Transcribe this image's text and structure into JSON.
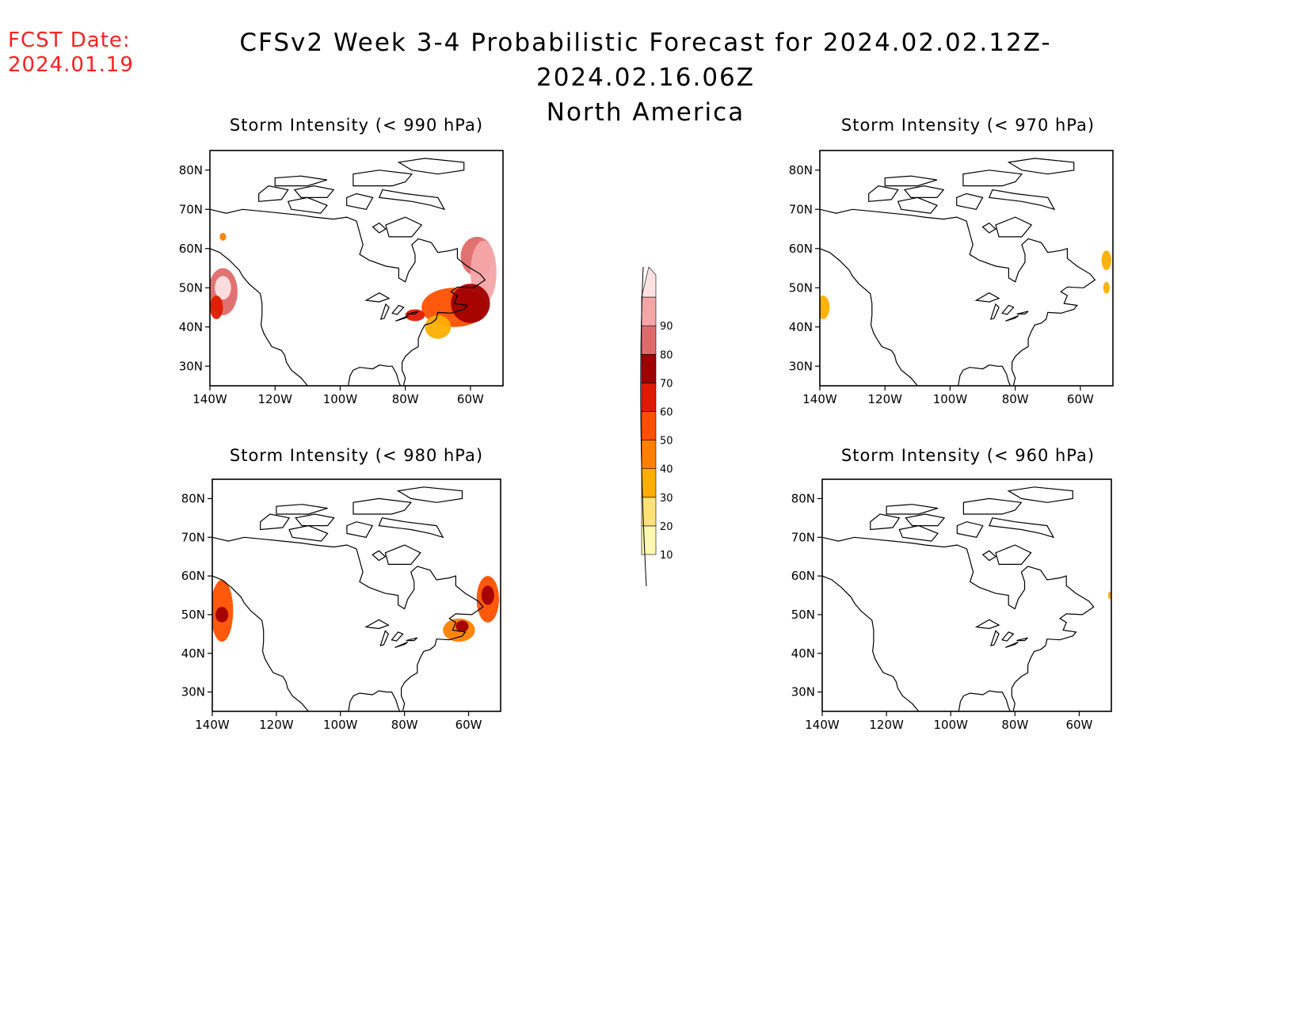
{
  "header": {
    "fcst_label": "FCST Date:",
    "fcst_date": "2024.01.19",
    "title": "CFSv2 Week 3-4 Probabilistic Forecast for 2024.02.02.12Z-2024.02.16.06Z",
    "region": "North America"
  },
  "colorbar": {
    "levels": [
      10,
      20,
      30,
      40,
      50,
      60,
      70,
      80,
      90
    ],
    "labels": [
      "10",
      "20",
      "30",
      "40",
      "50",
      "60",
      "70",
      "80",
      "90"
    ],
    "colors": [
      "#fff8b0",
      "#fde27a",
      "#fdae00",
      "#ff7f00",
      "#ff5000",
      "#e01a00",
      "#a00000",
      "#e06a6a",
      "#f4a6a6",
      "#fde2e2"
    ]
  },
  "axes": {
    "lon_ticks": [
      "140W",
      "120W",
      "100W",
      "80W",
      "60W"
    ],
    "lat_ticks": [
      "80N",
      "70N",
      "60N",
      "50N",
      "40N",
      "30N"
    ]
  },
  "panels": [
    {
      "id": "990",
      "title": "Storm Intensity (< 990 hPa)",
      "blobs": [
        {
          "lon": -136,
          "lat": 49,
          "rx": 4.5,
          "ry": 6,
          "level": 70
        },
        {
          "lon": -136,
          "lat": 50,
          "rx": 2.5,
          "ry": 3,
          "level": 90
        },
        {
          "lon": -138,
          "lat": 45,
          "rx": 2,
          "ry": 3,
          "level": 50
        },
        {
          "lon": -136,
          "lat": 63,
          "rx": 1,
          "ry": 1,
          "level": 30
        },
        {
          "lon": -58,
          "lat": 58,
          "rx": 5,
          "ry": 5,
          "level": 70
        },
        {
          "lon": -56,
          "lat": 54,
          "rx": 4,
          "ry": 8,
          "level": 80
        },
        {
          "lon": -65,
          "lat": 45,
          "rx": 10,
          "ry": 5,
          "level": 40
        },
        {
          "lon": -60,
          "lat": 46,
          "rx": 6,
          "ry": 5,
          "level": 60
        },
        {
          "lon": -77,
          "lat": 43,
          "rx": 3,
          "ry": 1.5,
          "level": 50
        },
        {
          "lon": -70,
          "lat": 40,
          "rx": 4,
          "ry": 3,
          "level": 20
        }
      ]
    },
    {
      "id": "970",
      "title": "Storm Intensity (< 970 hPa)",
      "blobs": [
        {
          "lon": -139,
          "lat": 45,
          "rx": 2,
          "ry": 3,
          "level": 20
        },
        {
          "lon": -52,
          "lat": 57,
          "rx": 1.5,
          "ry": 2.5,
          "level": 20
        },
        {
          "lon": -52,
          "lat": 50,
          "rx": 1,
          "ry": 1.5,
          "level": 20
        }
      ]
    },
    {
      "id": "980",
      "title": "Storm Intensity (< 980 hPa)",
      "blobs": [
        {
          "lon": -137,
          "lat": 51,
          "rx": 3.5,
          "ry": 8,
          "level": 40
        },
        {
          "lon": -137,
          "lat": 50,
          "rx": 2,
          "ry": 2,
          "level": 60
        },
        {
          "lon": -54,
          "lat": 54,
          "rx": 3.5,
          "ry": 6,
          "level": 40
        },
        {
          "lon": -54,
          "lat": 55,
          "rx": 2,
          "ry": 2.5,
          "level": 60
        },
        {
          "lon": -63,
          "lat": 46,
          "rx": 5,
          "ry": 3,
          "level": 30
        },
        {
          "lon": -62,
          "lat": 47,
          "rx": 2,
          "ry": 1.5,
          "level": 60
        }
      ]
    },
    {
      "id": "960",
      "title": "Storm Intensity (< 960 hPa)",
      "blobs": [
        {
          "lon": -50.5,
          "lat": 55,
          "rx": 0.5,
          "ry": 1,
          "level": 20
        }
      ]
    }
  ]
}
